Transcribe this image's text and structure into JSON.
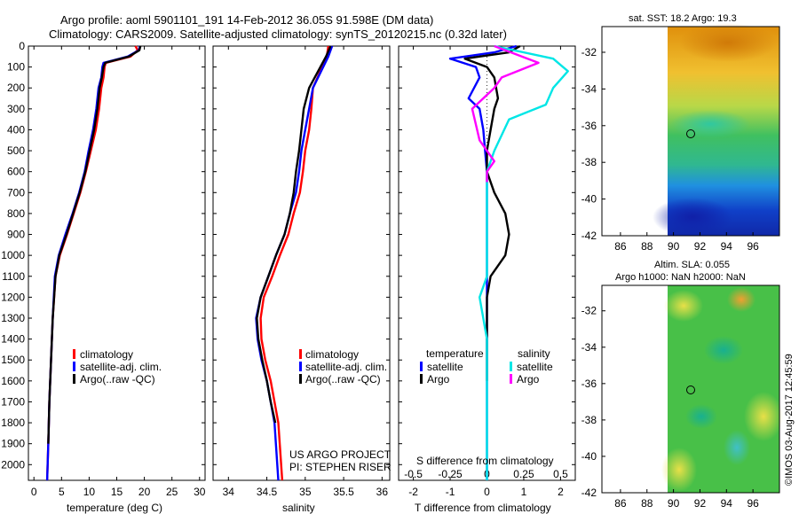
{
  "header": {
    "title_line1": "Argo profile: aoml 5901101_191 14-Feb-2012 36.05S 91.598E (DM data)",
    "title_line2": "Climatology: CARS2009. Satellite-adjusted climatology: synTS_20120215.nc (0.32d later)"
  },
  "colors": {
    "climatology": "#ff0000",
    "satellite": "#0000ff",
    "argo": "#000000",
    "sat_salinity": "#00e6e6",
    "argo_salinity": "#ff00ff"
  },
  "chart_data": [
    {
      "type": "line",
      "name": "temperature-panel",
      "xlabel": "temperature (deg C)",
      "ylabel": "",
      "xlim": [
        -1,
        31
      ],
      "ylim": [
        2075,
        0
      ],
      "xticks": [
        0,
        5,
        10,
        15,
        20,
        25,
        30
      ],
      "yticks": [
        0,
        100,
        200,
        300,
        400,
        500,
        600,
        700,
        800,
        900,
        1000,
        1100,
        1200,
        1300,
        1400,
        1500,
        1600,
        1700,
        1800,
        1900,
        2000
      ],
      "legend": [
        "climatology",
        "satellite-adj. clim.",
        "Argo(..raw -QC)"
      ],
      "series": [
        {
          "name": "climatology",
          "color": "#ff0000",
          "x": [
            18.4,
            18.8,
            17.5,
            13.0,
            12.8,
            12.6,
            12.2,
            11.8,
            11.2,
            10.3,
            9.4,
            8.4,
            7.2,
            6.0,
            4.7,
            3.9,
            3.4,
            3.1,
            2.8,
            2.6,
            2.4
          ],
          "y": [
            0,
            20,
            50,
            80,
            100,
            150,
            200,
            300,
            400,
            500,
            600,
            700,
            800,
            900,
            1000,
            1100,
            1300,
            1500,
            1700,
            1900,
            2075
          ]
        },
        {
          "name": "satellite-adj. clim.",
          "color": "#0000ff",
          "x": [
            19.2,
            19.0,
            17.0,
            12.6,
            12.4,
            12.2,
            11.7,
            11.3,
            10.7,
            9.9,
            9.2,
            8.2,
            7.0,
            5.7,
            4.5,
            3.8,
            3.4,
            3.1,
            2.8,
            2.6,
            2.4
          ],
          "y": [
            0,
            20,
            50,
            80,
            100,
            150,
            200,
            300,
            400,
            500,
            600,
            700,
            800,
            900,
            1000,
            1100,
            1300,
            1500,
            1700,
            1900,
            2075
          ]
        },
        {
          "name": "Argo(..raw -QC)",
          "color": "#000000",
          "x": [
            19.3,
            19.1,
            17.2,
            12.9,
            12.6,
            12.3,
            11.9,
            11.5,
            10.9,
            10.1,
            9.3,
            8.3,
            7.1,
            5.9,
            4.6,
            3.9,
            3.4,
            3.1,
            2.8,
            2.6
          ],
          "y": [
            0,
            20,
            50,
            80,
            100,
            150,
            200,
            300,
            400,
            500,
            600,
            700,
            800,
            900,
            1000,
            1100,
            1300,
            1500,
            1700,
            1900
          ]
        }
      ]
    },
    {
      "type": "line",
      "name": "salinity-panel",
      "xlabel": "salinity",
      "ylabel": "",
      "xlim": [
        33.8,
        36.1
      ],
      "ylim": [
        2075,
        0
      ],
      "xticks": [
        34,
        34.5,
        35,
        35.5,
        36
      ],
      "xticklabels": [
        "34",
        "34.5",
        "35",
        "35.5",
        "36"
      ],
      "legend": [
        "climatology",
        "satellite-adj. clim.",
        "Argo(..raw -QC)"
      ],
      "annotations": [
        "US ARGO PROJECT",
        "PI: STEPHEN RISER"
      ],
      "series": [
        {
          "name": "climatology",
          "color": "#ff0000",
          "x": [
            35.3,
            35.28,
            35.1,
            35.08,
            35.05,
            35.0,
            34.97,
            34.93,
            34.85,
            34.78,
            34.67,
            34.57,
            34.46,
            34.42,
            34.43,
            34.48,
            34.55,
            34.6,
            34.65,
            34.7
          ],
          "y": [
            0,
            50,
            200,
            300,
            400,
            500,
            600,
            700,
            800,
            900,
            1000,
            1100,
            1200,
            1300,
            1400,
            1500,
            1600,
            1700,
            1800,
            2075
          ]
        },
        {
          "name": "satellite-adj. clim.",
          "color": "#0000ff",
          "x": [
            35.35,
            35.3,
            35.1,
            35.05,
            35.0,
            34.95,
            34.92,
            34.88,
            34.8,
            34.73,
            34.62,
            34.52,
            34.42,
            34.36,
            34.38,
            34.43,
            34.5,
            34.55,
            34.6,
            34.65
          ],
          "y": [
            0,
            50,
            200,
            300,
            400,
            500,
            600,
            700,
            800,
            900,
            1000,
            1100,
            1200,
            1300,
            1400,
            1500,
            1600,
            1700,
            1800,
            2075
          ]
        },
        {
          "name": "Argo(..raw -QC)",
          "color": "#000000",
          "x": [
            35.33,
            35.27,
            35.05,
            34.98,
            34.95,
            34.92,
            34.88,
            34.85,
            34.8,
            34.73,
            34.62,
            34.52,
            34.42,
            34.37,
            34.39,
            34.44,
            34.5,
            34.55,
            34.61
          ],
          "y": [
            0,
            50,
            200,
            300,
            400,
            500,
            600,
            700,
            800,
            900,
            1000,
            1100,
            1200,
            1300,
            1400,
            1500,
            1600,
            1700,
            1800
          ]
        }
      ]
    },
    {
      "type": "line",
      "name": "difference-panel",
      "xlabel": "T difference from climatology",
      "xlabel_top": "S difference from climatology",
      "xlim": [
        -2.4,
        2.4
      ],
      "ylim": [
        2075,
        0
      ],
      "xticks": [
        -2,
        -1,
        0,
        1,
        2
      ],
      "s_ticks": [
        -0.5,
        -0.25,
        0,
        0.25,
        0.5
      ],
      "s_ticklabels": [
        "-0.5",
        "-0.25",
        "0",
        "0.25",
        "0.5"
      ],
      "legend_headers": [
        "temperature",
        "salinity"
      ],
      "legend": [
        "satellite",
        "Argo",
        "satellite",
        "Argo"
      ],
      "series": [
        {
          "name": "temperature satellite",
          "color": "#0000ff",
          "x": [
            0.8,
            0.2,
            -1.0,
            -0.3,
            -0.2,
            -0.5,
            -0.2,
            -0.1,
            -0.05,
            0.0,
            0.0,
            0.0,
            0.0,
            0.0,
            0.0,
            0.0,
            0.0,
            0.0,
            0.0
          ],
          "y": [
            0,
            30,
            60,
            100,
            150,
            250,
            300,
            400,
            500,
            600,
            700,
            800,
            900,
            1000,
            1200,
            1400,
            1600,
            1800,
            2075
          ]
        },
        {
          "name": "temperature Argo",
          "color": "#000000",
          "x": [
            0.9,
            0.6,
            -0.6,
            0.0,
            0.2,
            0.3,
            0.2,
            0.1,
            0.0,
            0.0,
            0.2,
            0.5,
            0.6,
            0.5,
            0.1,
            0.0,
            0.0,
            0.0
          ],
          "y": [
            0,
            30,
            60,
            100,
            150,
            250,
            300,
            400,
            500,
            600,
            700,
            800,
            900,
            1000,
            1100,
            1200,
            1400,
            1600
          ]
        },
        {
          "name": "salinity satellite",
          "color": "#00e6e6",
          "x": [
            0.05,
            0.45,
            0.55,
            0.45,
            0.4,
            0.15,
            0.05,
            0.0,
            0.0,
            0.0,
            0.0,
            0.0,
            0.0,
            -0.05,
            0.0,
            0.0,
            0.0,
            0.0
          ],
          "y": [
            0,
            60,
            120,
            200,
            280,
            350,
            500,
            600,
            700,
            800,
            900,
            1000,
            1100,
            1200,
            1400,
            1600,
            1800,
            2075
          ]
        },
        {
          "name": "salinity Argo",
          "color": "#ff00ff",
          "x": [
            0.05,
            0.35,
            0.1,
            0.05,
            -0.1,
            -0.05,
            0.05,
            0.0,
            0.0
          ],
          "y": [
            0,
            80,
            150,
            200,
            300,
            450,
            550,
            600,
            650
          ]
        }
      ]
    }
  ],
  "map_sst": {
    "title": "sat. SST: 18.2 Argo: 19.3",
    "xticks": [
      "86",
      "88",
      "90",
      "92",
      "94",
      "96"
    ],
    "yticks": [
      "-32",
      "-34",
      "-36",
      "-38",
      "-40",
      "-42"
    ],
    "marker": {
      "lon": 91.6,
      "lat": -36.05
    }
  },
  "map_sla": {
    "title_line1": "Altim. SLA: 0.055",
    "title_line2": "Argo h1000: NaN h2000: NaN",
    "xticks": [
      "86",
      "88",
      "90",
      "92",
      "94",
      "96"
    ],
    "yticks": [
      "-32",
      "-34",
      "-36",
      "-38",
      "-40",
      "-42"
    ],
    "marker": {
      "lon": 91.6,
      "lat": -36.05
    }
  },
  "credit": "©IMOS 03-Aug-2017 12:45:59"
}
